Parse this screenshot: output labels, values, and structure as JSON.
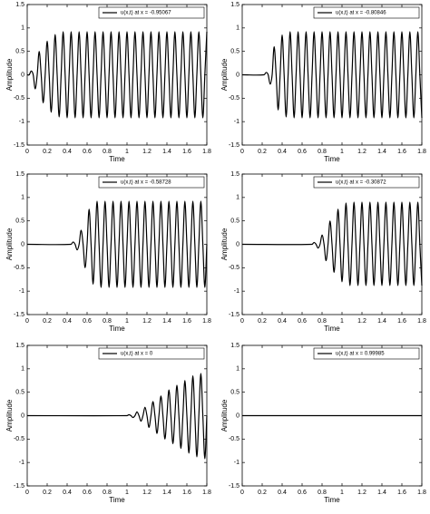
{
  "chart_data": [
    {
      "type": "line",
      "xlabel": "Time",
      "ylabel": "Amplitude",
      "xlim": [
        0,
        1.8
      ],
      "ylim": [
        -1.5,
        1.5
      ],
      "xticks": [
        0,
        0.2,
        0.4,
        0.6,
        0.8,
        1,
        1.2,
        1.4,
        1.6,
        1.8
      ],
      "yticks": [
        -1.5,
        -1,
        -0.5,
        0,
        0.5,
        1,
        1.5
      ],
      "legend": "upper right",
      "x": [
        0,
        0.02,
        0.04,
        0.06,
        0.08,
        0.1,
        0.12,
        0.14,
        0.16,
        0.18,
        0.2,
        0.22,
        0.24,
        0.26,
        0.28,
        0.3,
        0.32,
        0.34,
        0.36,
        0.38,
        0.4,
        0.42,
        0.44,
        0.46,
        0.48,
        0.5,
        0.52,
        0.54,
        0.56,
        0.58,
        0.6,
        0.62,
        0.64,
        0.66,
        0.68,
        0.7,
        0.72,
        0.74,
        0.76,
        0.78,
        0.8,
        0.82,
        0.84,
        0.86,
        0.88,
        0.9,
        0.92,
        0.94,
        0.96,
        0.98,
        1,
        1.02,
        1.04,
        1.06,
        1.08,
        1.1,
        1.12,
        1.14,
        1.16,
        1.18,
        1.2,
        1.22,
        1.24,
        1.26,
        1.28,
        1.3,
        1.32,
        1.34,
        1.36,
        1.38,
        1.4,
        1.42,
        1.44,
        1.46,
        1.48,
        1.5,
        1.52,
        1.54,
        1.56,
        1.58,
        1.6,
        1.62,
        1.64,
        1.66,
        1.68,
        1.7,
        1.72,
        1.74,
        1.76,
        1.78,
        1.8
      ],
      "series": [
        {
          "name": "u(x,t) at x = -0.95067",
          "color": "#000000",
          "values": [
            0,
            0,
            0.08,
            0,
            -0.3,
            0,
            0.5,
            0,
            -0.6,
            0,
            0.72,
            0,
            -0.8,
            0,
            0.86,
            0,
            -0.9,
            0,
            0.92,
            0,
            -0.92,
            0,
            0.92,
            0,
            -0.92,
            0,
            0.92,
            0,
            -0.92,
            0,
            0.92,
            0,
            -0.92,
            0,
            0.92,
            0,
            -0.92,
            0,
            0.92,
            0,
            -0.92,
            0,
            0.92,
            0,
            -0.92,
            0,
            0.92,
            0,
            -0.92,
            0,
            0.92,
            0,
            -0.92,
            0,
            0.92,
            0,
            -0.92,
            0,
            0.92,
            0,
            -0.92,
            0,
            0.92,
            0,
            -0.92,
            0,
            0.92,
            0,
            -0.92,
            0,
            0.92,
            0,
            -0.92,
            0,
            0.92,
            0,
            -0.92,
            0,
            0.92,
            0,
            -0.92,
            0,
            0.92,
            0,
            -0.92,
            0,
            0.92,
            0,
            -0.92,
            0,
            0.92
          ]
        }
      ]
    },
    {
      "type": "line",
      "xlabel": "Time",
      "ylabel": "Amplitude",
      "xlim": [
        0,
        1.8
      ],
      "ylim": [
        -1.5,
        1.5
      ],
      "xticks": [
        0,
        0.2,
        0.4,
        0.6,
        0.8,
        1,
        1.2,
        1.4,
        1.6,
        1.8
      ],
      "yticks": [
        -1.5,
        -1,
        -0.5,
        0,
        0.5,
        1,
        1.5
      ],
      "legend": "upper right",
      "x": [
        0,
        0.22,
        0.24,
        0.26,
        0.28,
        0.3,
        0.32,
        0.34,
        0.36,
        0.38,
        0.4,
        0.42,
        0.44,
        0.46,
        0.48,
        0.5,
        0.52,
        0.54,
        0.56,
        0.58,
        0.6,
        0.62,
        0.64,
        0.66,
        0.68,
        0.7,
        0.72,
        0.74,
        0.76,
        0.78,
        0.8,
        0.82,
        0.84,
        0.86,
        0.88,
        0.9,
        0.92,
        0.94,
        0.96,
        0.98,
        1,
        1.02,
        1.04,
        1.06,
        1.08,
        1.1,
        1.12,
        1.14,
        1.16,
        1.18,
        1.2,
        1.22,
        1.24,
        1.26,
        1.28,
        1.3,
        1.32,
        1.34,
        1.36,
        1.38,
        1.4,
        1.42,
        1.44,
        1.46,
        1.48,
        1.5,
        1.52,
        1.54,
        1.56,
        1.58,
        1.6,
        1.62,
        1.64,
        1.66,
        1.68,
        1.7,
        1.72,
        1.74,
        1.76,
        1.78,
        1.8
      ],
      "series": [
        {
          "name": "u(x,t) at x = -0.80846",
          "color": "#000000",
          "values": [
            0,
            0,
            0.05,
            0,
            -0.2,
            0,
            0.6,
            0,
            -0.75,
            0,
            0.85,
            0,
            -0.9,
            0,
            0.92,
            0,
            -0.92,
            0,
            0.92,
            0,
            -0.92,
            0,
            0.92,
            0,
            -0.92,
            0,
            0.92,
            0,
            -0.92,
            0,
            0.92,
            0,
            -0.92,
            0,
            0.92,
            0,
            -0.92,
            0,
            0.92,
            0,
            -0.92,
            0,
            0.92,
            0,
            -0.92,
            0,
            0.92,
            0,
            -0.92,
            0,
            0.92,
            0,
            -0.92,
            0,
            0.92,
            0,
            -0.92,
            0,
            0.92,
            0,
            -0.92,
            0,
            0.92,
            0,
            -0.92,
            0,
            0.92,
            0,
            -0.92,
            0,
            0.92,
            0,
            -0.92,
            0,
            0.92,
            0,
            -0.92,
            0,
            0.92,
            0,
            -0.92
          ]
        }
      ]
    },
    {
      "type": "line",
      "xlabel": "Time",
      "ylabel": "Amplitude",
      "xlim": [
        0,
        1.8
      ],
      "ylim": [
        -1.5,
        1.5
      ],
      "xticks": [
        0,
        0.2,
        0.4,
        0.6,
        0.8,
        1,
        1.2,
        1.4,
        1.6,
        1.8
      ],
      "yticks": [
        -1.5,
        -1,
        -0.5,
        0,
        0.5,
        1,
        1.5
      ],
      "legend": "upper right",
      "x": [
        0,
        0.44,
        0.46,
        0.48,
        0.5,
        0.52,
        0.54,
        0.56,
        0.58,
        0.6,
        0.62,
        0.64,
        0.66,
        0.68,
        0.7,
        0.72,
        0.74,
        0.76,
        0.78,
        0.8,
        0.82,
        0.84,
        0.86,
        0.88,
        0.9,
        0.92,
        0.94,
        0.96,
        0.98,
        1,
        1.02,
        1.04,
        1.06,
        1.08,
        1.1,
        1.12,
        1.14,
        1.16,
        1.18,
        1.2,
        1.22,
        1.24,
        1.26,
        1.28,
        1.3,
        1.32,
        1.34,
        1.36,
        1.38,
        1.4,
        1.42,
        1.44,
        1.46,
        1.48,
        1.5,
        1.52,
        1.54,
        1.56,
        1.58,
        1.6,
        1.62,
        1.64,
        1.66,
        1.68,
        1.7,
        1.72,
        1.74,
        1.76,
        1.78,
        1.8
      ],
      "series": [
        {
          "name": "u(x,t) at x = -0.58728",
          "color": "#000000",
          "values": [
            0,
            0,
            0.05,
            0,
            -0.12,
            0,
            0.3,
            0,
            -0.5,
            0,
            0.75,
            0,
            -0.85,
            0,
            0.92,
            0,
            -0.92,
            0,
            0.92,
            0,
            -0.92,
            0,
            0.92,
            0,
            -0.92,
            0,
            0.92,
            0,
            -0.92,
            0,
            0.92,
            0,
            -0.92,
            0,
            0.92,
            0,
            -0.92,
            0,
            0.92,
            0,
            -0.92,
            0,
            0.92,
            0,
            -0.92,
            0,
            0.92,
            0,
            -0.92,
            0,
            0.92,
            0,
            -0.92,
            0,
            0.92,
            0,
            -0.92,
            0,
            0.92,
            0,
            -0.92,
            0,
            0.92,
            0,
            -0.92,
            0,
            0.92,
            0,
            -0.92,
            0
          ]
        }
      ]
    },
    {
      "type": "line",
      "xlabel": "Time",
      "ylabel": "Amplitude",
      "xlim": [
        0,
        1.8
      ],
      "ylim": [
        -1.5,
        1.5
      ],
      "xticks": [
        0,
        0.2,
        0.4,
        0.6,
        0.8,
        1,
        1.2,
        1.4,
        1.6,
        1.8
      ],
      "yticks": [
        -1.5,
        -1,
        -0.5,
        0,
        0.5,
        1,
        1.5
      ],
      "legend": "upper right",
      "x": [
        0,
        0.7,
        0.72,
        0.74,
        0.76,
        0.78,
        0.8,
        0.82,
        0.84,
        0.86,
        0.88,
        0.9,
        0.92,
        0.94,
        0.96,
        0.98,
        1,
        1.02,
        1.04,
        1.06,
        1.08,
        1.1,
        1.12,
        1.14,
        1.16,
        1.18,
        1.2,
        1.22,
        1.24,
        1.26,
        1.28,
        1.3,
        1.32,
        1.34,
        1.36,
        1.38,
        1.4,
        1.42,
        1.44,
        1.46,
        1.48,
        1.5,
        1.52,
        1.54,
        1.56,
        1.58,
        1.6,
        1.62,
        1.64,
        1.66,
        1.68,
        1.7,
        1.72,
        1.74,
        1.76,
        1.78,
        1.8
      ],
      "series": [
        {
          "name": "u(x,t) at x = -0.30872",
          "color": "#000000",
          "values": [
            0,
            0,
            0.04,
            0,
            -0.08,
            0,
            0.2,
            0,
            -0.35,
            0,
            0.5,
            0,
            -0.6,
            0,
            0.75,
            0,
            -0.8,
            0,
            0.88,
            0,
            -0.88,
            0,
            0.9,
            0,
            -0.88,
            0,
            0.9,
            0,
            -0.88,
            0,
            0.9,
            0,
            -0.88,
            0,
            0.9,
            0,
            -0.88,
            0,
            0.9,
            0,
            -0.88,
            0,
            0.9,
            0,
            -0.88,
            0,
            0.9,
            0,
            -0.88,
            0,
            0.9,
            0,
            -0.88,
            0,
            0.9,
            0,
            -0.88
          ]
        }
      ]
    },
    {
      "type": "line",
      "xlabel": "Time",
      "ylabel": "Amplitude",
      "xlim": [
        0,
        1.8
      ],
      "ylim": [
        -1.5,
        1.5
      ],
      "xticks": [
        0,
        0.2,
        0.4,
        0.6,
        0.8,
        1,
        1.2,
        1.4,
        1.6,
        1.8
      ],
      "yticks": [
        -1.5,
        -1,
        -0.5,
        0,
        0.5,
        1,
        1.5
      ],
      "legend": "upper right",
      "x": [
        0,
        1,
        1.02,
        1.04,
        1.06,
        1.08,
        1.1,
        1.12,
        1.14,
        1.16,
        1.18,
        1.2,
        1.22,
        1.24,
        1.26,
        1.28,
        1.3,
        1.32,
        1.34,
        1.36,
        1.38,
        1.4,
        1.42,
        1.44,
        1.46,
        1.48,
        1.5,
        1.52,
        1.54,
        1.56,
        1.58,
        1.6,
        1.62,
        1.64,
        1.66,
        1.68,
        1.7,
        1.72,
        1.74,
        1.76,
        1.78,
        1.8
      ],
      "series": [
        {
          "name": "u(x,t) at x = 0",
          "color": "#000000",
          "values": [
            0,
            0,
            0.02,
            0,
            -0.04,
            0,
            0.08,
            0,
            -0.12,
            0,
            0.18,
            0,
            -0.25,
            0,
            0.3,
            0,
            -0.38,
            0,
            0.42,
            0,
            -0.5,
            0,
            0.55,
            0,
            -0.6,
            0,
            0.65,
            0,
            -0.7,
            0,
            0.75,
            0,
            -0.8,
            0,
            0.85,
            0,
            -0.88,
            0,
            0.9,
            0,
            -0.92,
            0
          ]
        }
      ]
    },
    {
      "type": "line",
      "xlabel": "Time",
      "ylabel": "Amplitude",
      "xlim": [
        0,
        1.8
      ],
      "ylim": [
        -1.5,
        1.5
      ],
      "xticks": [
        0,
        0.2,
        0.4,
        0.6,
        0.8,
        1,
        1.2,
        1.4,
        1.6,
        1.8
      ],
      "yticks": [
        -1.5,
        -1,
        -0.5,
        0,
        0.5,
        1,
        1.5
      ],
      "legend": "upper right",
      "x": [
        0,
        1.8
      ],
      "series": [
        {
          "name": "u(x,t) at x = 0.99985",
          "color": "#000000",
          "values": [
            0,
            0
          ]
        }
      ]
    }
  ]
}
